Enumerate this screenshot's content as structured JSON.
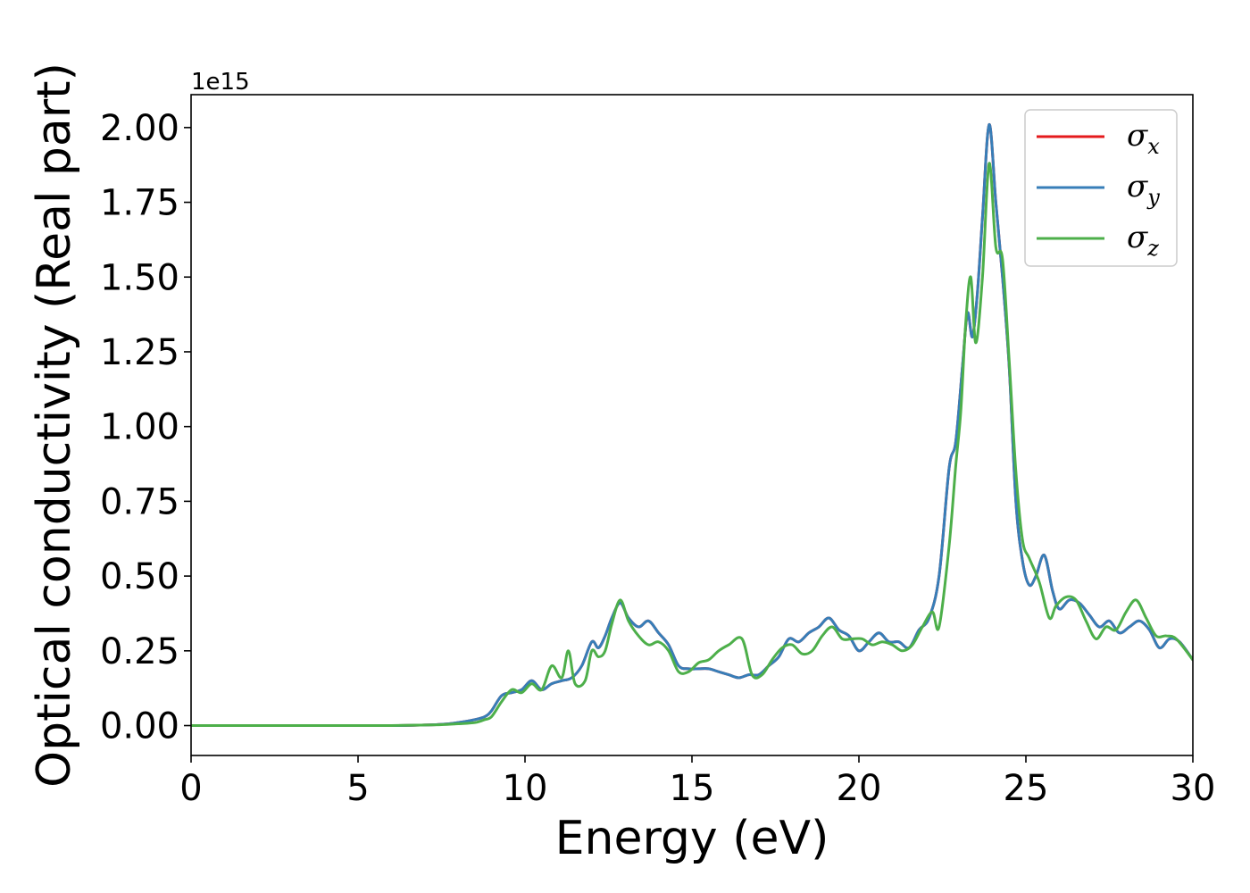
{
  "chart_data": {
    "type": "line",
    "title": "",
    "xlabel": "Energy (eV)",
    "ylabel": "Optical conductivity (Real part)",
    "y_offset_label": "1e15",
    "xlim": [
      0,
      30
    ],
    "ylim": [
      -0.1,
      2.11
    ],
    "x_ticks": [
      0,
      5,
      10,
      15,
      20,
      25,
      30
    ],
    "x_tick_labels": [
      "0",
      "5",
      "10",
      "15",
      "20",
      "25",
      "30"
    ],
    "y_ticks": [
      0.0,
      0.25,
      0.5,
      0.75,
      1.0,
      1.25,
      1.5,
      1.75,
      2.0
    ],
    "y_tick_labels": [
      "0.00",
      "0.25",
      "0.50",
      "0.75",
      "1.00",
      "1.25",
      "1.50",
      "1.75",
      "2.00"
    ],
    "grid": false,
    "legend_position": "top-right",
    "colors": {
      "sigma_x": "#e41a1c",
      "sigma_y": "#377eb8",
      "sigma_z": "#4daf4a"
    },
    "series": [
      {
        "name": "σx",
        "symbol": "σ",
        "subscript": "x",
        "color": "#e41a1c",
        "x": [
          0,
          2,
          4,
          6,
          7,
          7.5,
          8,
          8.5,
          8.8,
          9.0,
          9.3,
          9.6,
          9.9,
          10.2,
          10.5,
          10.8,
          11.1,
          11.4,
          11.7,
          12.0,
          12.2,
          12.4,
          12.6,
          12.85,
          13.1,
          13.4,
          13.7,
          14.0,
          14.3,
          14.6,
          14.9,
          15.2,
          15.5,
          15.8,
          16.1,
          16.4,
          16.7,
          17.0,
          17.3,
          17.6,
          17.9,
          18.2,
          18.5,
          18.8,
          19.1,
          19.4,
          19.7,
          20.0,
          20.3,
          20.6,
          20.9,
          21.2,
          21.5,
          21.8,
          22.1,
          22.4,
          22.7,
          22.9,
          23.1,
          23.25,
          23.4,
          23.55,
          23.7,
          23.9,
          24.1,
          24.3,
          24.5,
          24.7,
          24.9,
          25.1,
          25.3,
          25.55,
          25.8,
          26.0,
          26.3,
          26.6,
          26.9,
          27.2,
          27.5,
          27.8,
          28.1,
          28.4,
          28.7,
          29.0,
          29.3,
          29.6,
          30.0
        ],
        "values": [
          0.0,
          0.0,
          0.0,
          0.0,
          0.002,
          0.004,
          0.01,
          0.02,
          0.03,
          0.05,
          0.1,
          0.11,
          0.12,
          0.15,
          0.12,
          0.14,
          0.15,
          0.16,
          0.2,
          0.28,
          0.26,
          0.3,
          0.36,
          0.41,
          0.36,
          0.33,
          0.35,
          0.31,
          0.27,
          0.2,
          0.19,
          0.19,
          0.19,
          0.18,
          0.17,
          0.16,
          0.17,
          0.17,
          0.2,
          0.23,
          0.29,
          0.28,
          0.31,
          0.33,
          0.36,
          0.32,
          0.3,
          0.25,
          0.28,
          0.31,
          0.28,
          0.28,
          0.26,
          0.32,
          0.36,
          0.5,
          0.86,
          0.95,
          1.2,
          1.38,
          1.3,
          1.45,
          1.7,
          2.01,
          1.75,
          1.5,
          1.2,
          0.75,
          0.55,
          0.47,
          0.5,
          0.57,
          0.45,
          0.39,
          0.42,
          0.41,
          0.37,
          0.33,
          0.35,
          0.31,
          0.33,
          0.35,
          0.32,
          0.26,
          0.29,
          0.28,
          0.22
        ]
      },
      {
        "name": "σy",
        "symbol": "σ",
        "subscript": "y",
        "color": "#377eb8",
        "x": [
          0,
          2,
          4,
          6,
          7,
          7.5,
          8,
          8.5,
          8.8,
          9.0,
          9.3,
          9.6,
          9.9,
          10.2,
          10.5,
          10.8,
          11.1,
          11.4,
          11.7,
          12.0,
          12.2,
          12.4,
          12.6,
          12.85,
          13.1,
          13.4,
          13.7,
          14.0,
          14.3,
          14.6,
          14.9,
          15.2,
          15.5,
          15.8,
          16.1,
          16.4,
          16.7,
          17.0,
          17.3,
          17.6,
          17.9,
          18.2,
          18.5,
          18.8,
          19.1,
          19.4,
          19.7,
          20.0,
          20.3,
          20.6,
          20.9,
          21.2,
          21.5,
          21.8,
          22.1,
          22.4,
          22.7,
          22.9,
          23.1,
          23.25,
          23.4,
          23.55,
          23.7,
          23.9,
          24.1,
          24.3,
          24.5,
          24.7,
          24.9,
          25.1,
          25.3,
          25.55,
          25.8,
          26.0,
          26.3,
          26.6,
          26.9,
          27.2,
          27.5,
          27.8,
          28.1,
          28.4,
          28.7,
          29.0,
          29.3,
          29.6,
          30.0
        ],
        "values": [
          0.0,
          0.0,
          0.0,
          0.0,
          0.002,
          0.004,
          0.01,
          0.02,
          0.03,
          0.05,
          0.1,
          0.11,
          0.12,
          0.15,
          0.12,
          0.14,
          0.15,
          0.16,
          0.2,
          0.28,
          0.26,
          0.3,
          0.36,
          0.41,
          0.36,
          0.33,
          0.35,
          0.31,
          0.27,
          0.2,
          0.19,
          0.19,
          0.19,
          0.18,
          0.17,
          0.16,
          0.17,
          0.17,
          0.2,
          0.23,
          0.29,
          0.28,
          0.31,
          0.33,
          0.36,
          0.32,
          0.3,
          0.25,
          0.28,
          0.31,
          0.28,
          0.28,
          0.26,
          0.32,
          0.36,
          0.5,
          0.86,
          0.95,
          1.2,
          1.38,
          1.3,
          1.45,
          1.7,
          2.01,
          1.75,
          1.5,
          1.2,
          0.75,
          0.55,
          0.47,
          0.5,
          0.57,
          0.45,
          0.39,
          0.42,
          0.41,
          0.37,
          0.33,
          0.35,
          0.31,
          0.33,
          0.35,
          0.32,
          0.26,
          0.29,
          0.28,
          0.22
        ]
      },
      {
        "name": "σz",
        "symbol": "σ",
        "subscript": "z",
        "color": "#4daf4a",
        "x": [
          0,
          2,
          4,
          6,
          7,
          7.5,
          8,
          8.5,
          8.8,
          9.0,
          9.3,
          9.6,
          9.9,
          10.2,
          10.5,
          10.8,
          11.1,
          11.3,
          11.5,
          11.8,
          12.0,
          12.2,
          12.4,
          12.6,
          12.85,
          13.1,
          13.4,
          13.7,
          14.0,
          14.3,
          14.6,
          14.9,
          15.2,
          15.5,
          15.8,
          16.1,
          16.5,
          16.8,
          17.1,
          17.4,
          17.7,
          18.0,
          18.3,
          18.6,
          18.9,
          19.2,
          19.5,
          19.8,
          20.1,
          20.4,
          20.7,
          21.0,
          21.3,
          21.6,
          21.9,
          22.2,
          22.4,
          22.7,
          22.9,
          23.05,
          23.2,
          23.35,
          23.5,
          23.7,
          23.9,
          24.1,
          24.3,
          24.5,
          24.7,
          24.9,
          25.1,
          25.4,
          25.7,
          25.9,
          26.2,
          26.5,
          26.8,
          27.1,
          27.4,
          27.7,
          28.0,
          28.3,
          28.6,
          28.9,
          29.2,
          29.5,
          30.0
        ],
        "values": [
          0.0,
          0.0,
          0.0,
          0.0,
          0.002,
          0.003,
          0.006,
          0.01,
          0.02,
          0.03,
          0.08,
          0.12,
          0.11,
          0.14,
          0.12,
          0.2,
          0.16,
          0.25,
          0.14,
          0.15,
          0.25,
          0.23,
          0.25,
          0.34,
          0.42,
          0.35,
          0.3,
          0.27,
          0.28,
          0.25,
          0.18,
          0.18,
          0.21,
          0.22,
          0.25,
          0.27,
          0.29,
          0.17,
          0.17,
          0.22,
          0.26,
          0.27,
          0.24,
          0.25,
          0.3,
          0.33,
          0.29,
          0.29,
          0.29,
          0.27,
          0.28,
          0.27,
          0.25,
          0.27,
          0.33,
          0.38,
          0.33,
          0.6,
          0.87,
          1.05,
          1.35,
          1.5,
          1.28,
          1.5,
          1.88,
          1.6,
          1.56,
          1.22,
          0.85,
          0.62,
          0.56,
          0.48,
          0.36,
          0.4,
          0.43,
          0.42,
          0.35,
          0.29,
          0.33,
          0.32,
          0.38,
          0.42,
          0.36,
          0.3,
          0.3,
          0.29,
          0.22
        ]
      }
    ]
  }
}
